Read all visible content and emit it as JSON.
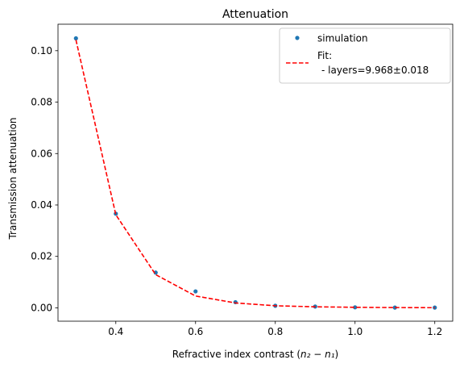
{
  "chart_data": {
    "type": "scatter",
    "title": "Attenuation",
    "xlabel": "Refractive index contrast (",
    "xlabel_math": "n₂ − n₁",
    "xlabel_suffix": ")",
    "ylabel": "Transmission attenuation",
    "xlim": [
      0.255,
      1.245
    ],
    "ylim": [
      -0.0052,
      0.1103
    ],
    "xticks": [
      0.4,
      0.6,
      0.8,
      1.0,
      1.2
    ],
    "xtick_labels": [
      "0.4",
      "0.6",
      "0.8",
      "1.0",
      "1.2"
    ],
    "yticks": [
      0.0,
      0.02,
      0.04,
      0.06,
      0.08,
      0.1
    ],
    "ytick_labels": [
      "0.00",
      "0.02",
      "0.04",
      "0.06",
      "0.08",
      "0.10"
    ],
    "grid": false,
    "legend_position": "top-right",
    "series": [
      {
        "name": "simulation",
        "kind": "markers",
        "color": "#1f77b4",
        "x": [
          0.3,
          0.4,
          0.5,
          0.6,
          0.7,
          0.8,
          0.9,
          1.0,
          1.1,
          1.2
        ],
        "y": [
          0.1048,
          0.0366,
          0.0137,
          0.0064,
          0.0022,
          0.0008,
          0.0005,
          0.0002,
          0.0001,
          0.0001
        ]
      },
      {
        "name": "Fit:",
        "name_line2": "- layers=9.968±0.018",
        "kind": "dashed-line",
        "color": "#ff0000",
        "x": [
          0.3,
          0.4,
          0.5,
          0.6,
          0.7,
          0.8,
          0.9,
          1.0,
          1.1,
          1.2
        ],
        "y": [
          0.1042,
          0.0362,
          0.0129,
          0.0046,
          0.0019,
          0.0008,
          0.0004,
          0.0002,
          0.0001,
          5e-05
        ]
      }
    ]
  }
}
